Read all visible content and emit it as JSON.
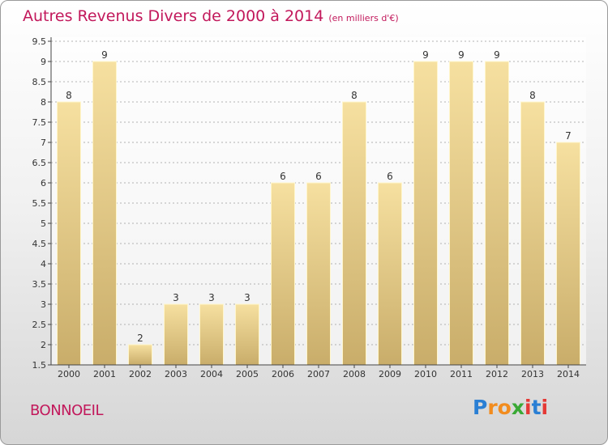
{
  "header": {
    "title": "Autres Revenus Divers de 2000 à 2014",
    "subtitle": "(en milliers d'€)"
  },
  "footer": {
    "place": "BONNOEIL",
    "logo_letters": [
      "P",
      "r",
      "o",
      "x",
      "i",
      "t",
      "i"
    ],
    "logo_colors": [
      "#2a7fd4",
      "#f28c1e",
      "#f28c1e",
      "#3aa935",
      "#e53935",
      "#2a7fd4",
      "#e53935"
    ]
  },
  "chart_data": {
    "type": "bar",
    "title": "Autres Revenus Divers de 2000 à 2014",
    "subtitle": "(en milliers d'€)",
    "xlabel": "",
    "ylabel": "",
    "categories": [
      "2000",
      "2001",
      "2002",
      "2003",
      "2004",
      "2005",
      "2006",
      "2007",
      "2008",
      "2009",
      "2010",
      "2011",
      "2012",
      "2013",
      "2014"
    ],
    "values": [
      8,
      9,
      2,
      3,
      3,
      3,
      6,
      6,
      8,
      6,
      9,
      9,
      9,
      8,
      7
    ],
    "data_labels": [
      "8",
      "9",
      "2",
      "3",
      "3",
      "3",
      "6",
      "6",
      "8",
      "6",
      "9",
      "9",
      "9",
      "8",
      "7"
    ],
    "ylim": [
      1.5,
      9.5
    ],
    "yticks": [
      "1.5",
      "2",
      "2.5",
      "3",
      "3.5",
      "4",
      "4.5",
      "5",
      "5.5",
      "6",
      "6.5",
      "7",
      "7.5",
      "8",
      "8.5",
      "9",
      "9.5"
    ],
    "grid": true,
    "legend": "none",
    "colors": {
      "bar_top": "#f6e0a0",
      "bar_bottom": "#c9ad6a",
      "bar_edge": "#fff6cc",
      "grid": "#9a9a9a",
      "axis": "#444444",
      "text": "#333333"
    }
  }
}
